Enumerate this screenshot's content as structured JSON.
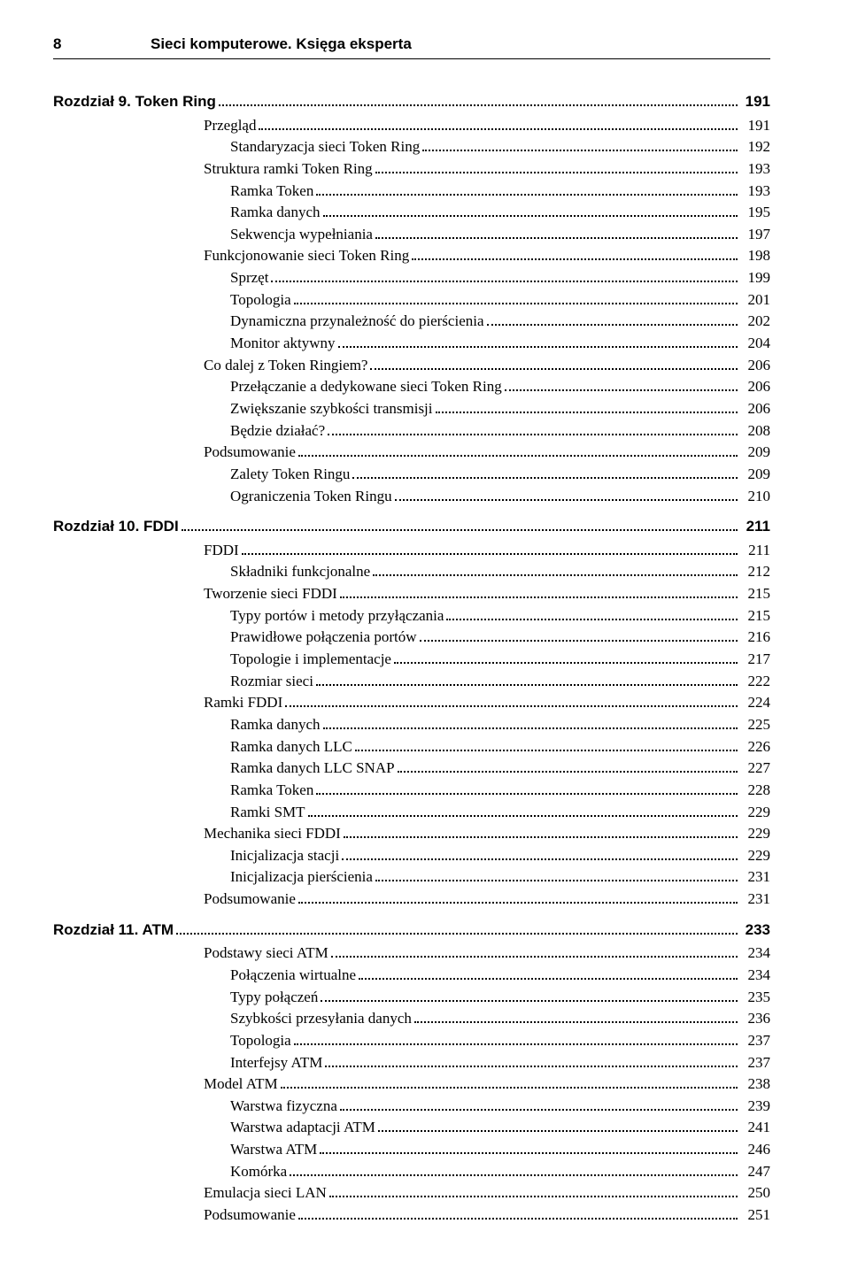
{
  "header": {
    "page_number": "8",
    "book_title": "Sieci komputerowe. Księga eksperta"
  },
  "toc": [
    {
      "type": "chapter",
      "level": 0,
      "label": "Rozdział 9. Token Ring",
      "page": "191"
    },
    {
      "type": "entry",
      "level": 1,
      "label": "Przegląd",
      "page": "191"
    },
    {
      "type": "entry",
      "level": 2,
      "label": "Standaryzacja sieci Token Ring",
      "page": "192"
    },
    {
      "type": "entry",
      "level": 1,
      "label": "Struktura ramki Token Ring",
      "page": "193"
    },
    {
      "type": "entry",
      "level": 2,
      "label": "Ramka Token",
      "page": "193"
    },
    {
      "type": "entry",
      "level": 2,
      "label": "Ramka danych",
      "page": "195"
    },
    {
      "type": "entry",
      "level": 2,
      "label": "Sekwencja wypełniania",
      "page": "197"
    },
    {
      "type": "entry",
      "level": 1,
      "label": "Funkcjonowanie sieci Token Ring",
      "page": "198"
    },
    {
      "type": "entry",
      "level": 2,
      "label": "Sprzęt",
      "page": "199"
    },
    {
      "type": "entry",
      "level": 2,
      "label": "Topologia",
      "page": "201"
    },
    {
      "type": "entry",
      "level": 2,
      "label": "Dynamiczna przynależność do pierścienia",
      "page": "202"
    },
    {
      "type": "entry",
      "level": 2,
      "label": "Monitor aktywny",
      "page": "204"
    },
    {
      "type": "entry",
      "level": 1,
      "label": "Co dalej z Token Ringiem?",
      "page": "206"
    },
    {
      "type": "entry",
      "level": 2,
      "label": "Przełączanie a dedykowane sieci Token Ring",
      "page": "206"
    },
    {
      "type": "entry",
      "level": 2,
      "label": "Zwiększanie szybkości transmisji",
      "page": "206"
    },
    {
      "type": "entry",
      "level": 2,
      "label": "Będzie działać?",
      "page": "208"
    },
    {
      "type": "entry",
      "level": 1,
      "label": "Podsumowanie",
      "page": "209"
    },
    {
      "type": "entry",
      "level": 2,
      "label": "Zalety Token Ringu",
      "page": "209"
    },
    {
      "type": "entry",
      "level": 2,
      "label": "Ograniczenia Token Ringu",
      "page": "210"
    },
    {
      "type": "chapter",
      "level": 0,
      "label": "Rozdział 10. FDDI",
      "page": "211"
    },
    {
      "type": "entry",
      "level": 1,
      "label": "FDDI",
      "page": "211"
    },
    {
      "type": "entry",
      "level": 2,
      "label": "Składniki funkcjonalne",
      "page": "212"
    },
    {
      "type": "entry",
      "level": 1,
      "label": "Tworzenie sieci FDDI",
      "page": "215"
    },
    {
      "type": "entry",
      "level": 2,
      "label": "Typy portów i metody przyłączania",
      "page": "215"
    },
    {
      "type": "entry",
      "level": 2,
      "label": "Prawidłowe połączenia portów",
      "page": "216"
    },
    {
      "type": "entry",
      "level": 2,
      "label": "Topologie i implementacje",
      "page": "217"
    },
    {
      "type": "entry",
      "level": 2,
      "label": "Rozmiar sieci",
      "page": "222"
    },
    {
      "type": "entry",
      "level": 1,
      "label": "Ramki FDDI",
      "page": "224"
    },
    {
      "type": "entry",
      "level": 2,
      "label": "Ramka danych",
      "page": "225"
    },
    {
      "type": "entry",
      "level": 2,
      "label": "Ramka danych LLC",
      "page": "226"
    },
    {
      "type": "entry",
      "level": 2,
      "label": "Ramka danych LLC SNAP",
      "page": "227"
    },
    {
      "type": "entry",
      "level": 2,
      "label": "Ramka Token",
      "page": "228"
    },
    {
      "type": "entry",
      "level": 2,
      "label": "Ramki SMT",
      "page": "229"
    },
    {
      "type": "entry",
      "level": 1,
      "label": "Mechanika sieci FDDI",
      "page": "229"
    },
    {
      "type": "entry",
      "level": 2,
      "label": "Inicjalizacja stacji",
      "page": "229"
    },
    {
      "type": "entry",
      "level": 2,
      "label": "Inicjalizacja pierścienia",
      "page": "231"
    },
    {
      "type": "entry",
      "level": 1,
      "label": "Podsumowanie",
      "page": "231"
    },
    {
      "type": "chapter",
      "level": 0,
      "label": "Rozdział 11. ATM",
      "page": "233"
    },
    {
      "type": "entry",
      "level": 1,
      "label": "Podstawy sieci ATM",
      "page": "234"
    },
    {
      "type": "entry",
      "level": 2,
      "label": "Połączenia wirtualne",
      "page": "234"
    },
    {
      "type": "entry",
      "level": 2,
      "label": "Typy połączeń",
      "page": "235"
    },
    {
      "type": "entry",
      "level": 2,
      "label": "Szybkości przesyłania danych",
      "page": "236"
    },
    {
      "type": "entry",
      "level": 2,
      "label": "Topologia",
      "page": "237"
    },
    {
      "type": "entry",
      "level": 2,
      "label": "Interfejsy ATM",
      "page": "237"
    },
    {
      "type": "entry",
      "level": 1,
      "label": "Model ATM",
      "page": "238"
    },
    {
      "type": "entry",
      "level": 2,
      "label": "Warstwa fizyczna",
      "page": "239"
    },
    {
      "type": "entry",
      "level": 2,
      "label": "Warstwa adaptacji ATM",
      "page": "241"
    },
    {
      "type": "entry",
      "level": 2,
      "label": "Warstwa ATM",
      "page": "246"
    },
    {
      "type": "entry",
      "level": 2,
      "label": "Komórka",
      "page": "247"
    },
    {
      "type": "entry",
      "level": 1,
      "label": "Emulacja sieci LAN",
      "page": "250"
    },
    {
      "type": "entry",
      "level": 1,
      "label": "Podsumowanie",
      "page": "251"
    }
  ]
}
